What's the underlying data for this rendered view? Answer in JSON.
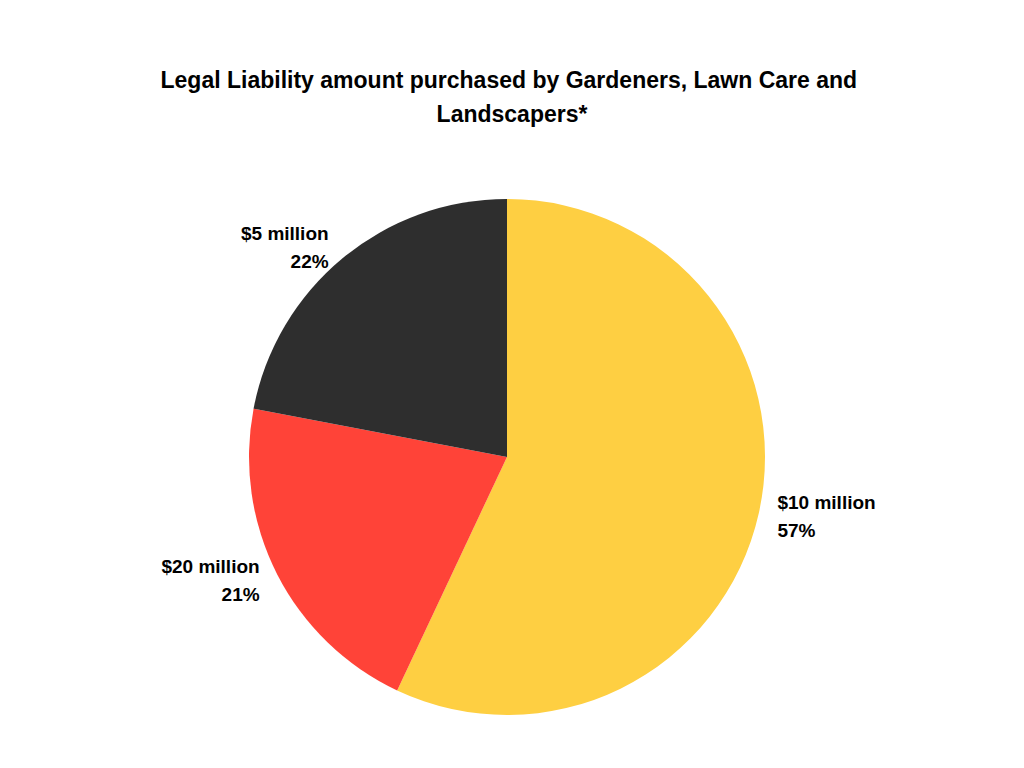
{
  "chart_data": {
    "type": "pie",
    "title": "Legal Liability amount purchased by Gardeners, Lawn Care and Landscapers*",
    "categories": [
      "$10 million",
      "$20 million",
      "$5 million"
    ],
    "values": [
      57,
      21,
      22
    ],
    "value_labels": [
      "57%",
      "21%",
      "22%"
    ],
    "colors": [
      "#fecf42",
      "#ff4338",
      "#2e2e2e"
    ],
    "data_labels": true
  }
}
